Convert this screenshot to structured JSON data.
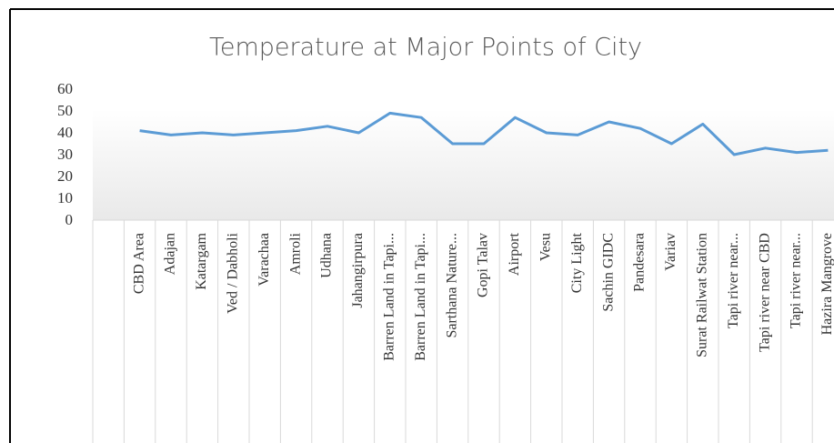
{
  "chart_data": {
    "type": "line",
    "title": "Temperature at Major Points of City",
    "categories": [
      null,
      "CBD Area",
      "Adajan",
      "Katargam",
      "Ved / Dabholi",
      "Varachaa",
      "Amroli",
      "Udhana",
      "Jahangirpura",
      "Barren Land in Tapi...",
      "Barren Land in Tapi...",
      "Sarthana Nature...",
      "Gopi Talav",
      "Airport",
      "Vesu",
      "City Light",
      "Sachin GIDC",
      "Pandesara",
      "Variav",
      "Surat Railwat Station",
      "Tapi river near...",
      "Tapi river near CBD",
      "Tapi river near...",
      "Hazira Mangrove"
    ],
    "values": [
      null,
      41,
      39,
      40,
      39,
      40,
      41,
      43,
      40,
      49,
      47,
      35,
      35,
      47,
      40,
      39,
      45,
      42,
      35,
      44,
      30,
      33,
      31,
      32
    ],
    "color": "#5b9bd5",
    "ylim": [
      0,
      60
    ],
    "yticks": [
      0,
      10,
      20,
      30,
      40,
      50,
      60
    ],
    "grid": false
  }
}
